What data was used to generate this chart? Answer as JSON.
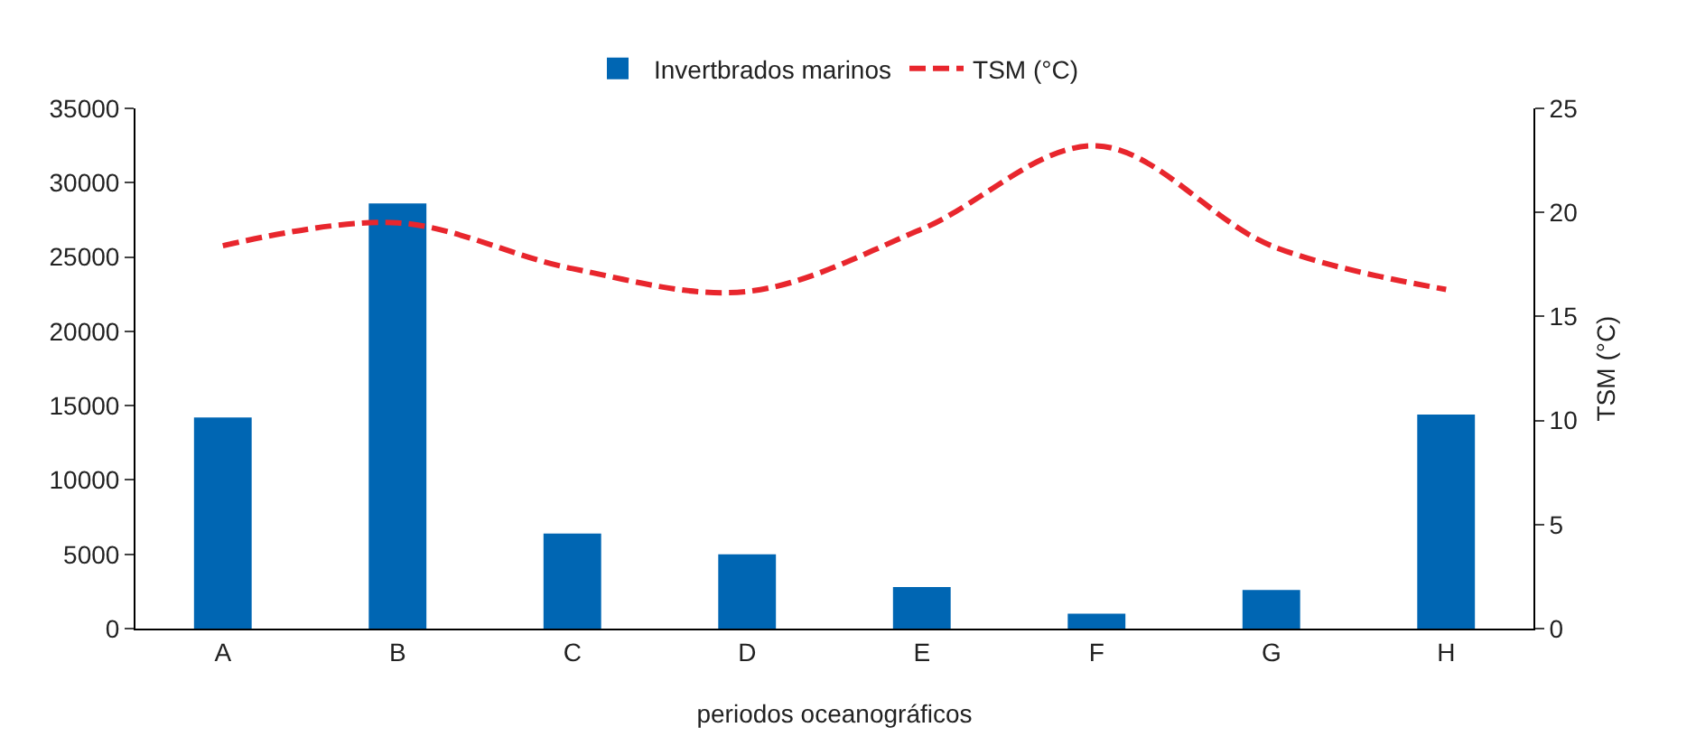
{
  "chart_data": {
    "type": "bar",
    "xlabel": "periodos oceanográficos",
    "y2label": "TSM (°C)",
    "categories": [
      "A",
      "B",
      "C",
      "D",
      "E",
      "F",
      "G",
      "H"
    ],
    "series": [
      {
        "name": "Invertbrados marinos",
        "color": "#0066b3",
        "values": [
          14200,
          28600,
          6400,
          5000,
          2800,
          1000,
          2600,
          14400
        ]
      },
      {
        "name": "TSM (°C)",
        "type": "line",
        "axis": "y2",
        "color": "#e8262d",
        "line_style": "dashed",
        "values": [
          18.4,
          19.5,
          17.3,
          16.2,
          19.2,
          23.2,
          18.4,
          16.3
        ]
      }
    ],
    "ylim": [
      0,
      35000
    ],
    "yticks": [
      0,
      5000,
      10000,
      15000,
      20000,
      25000,
      30000,
      35000
    ],
    "y2lim": [
      0,
      25
    ],
    "y2ticks": [
      0,
      5,
      10,
      15,
      20,
      25
    ],
    "grid": false,
    "legend": "top",
    "marker": "none"
  }
}
